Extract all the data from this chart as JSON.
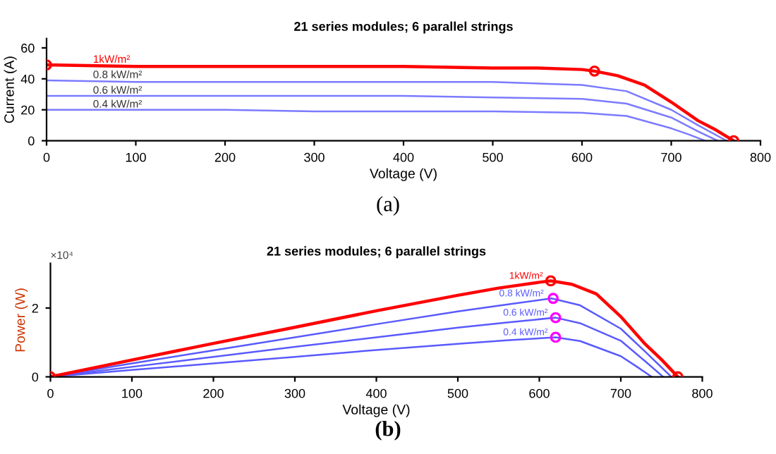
{
  "chart_data": [
    {
      "type": "line",
      "title": "21 series modules; 6 parallel strings",
      "xlabel": "Voltage (V)",
      "ylabel": "Current (A)",
      "xlim": [
        0,
        800
      ],
      "ylim": [
        0,
        66
      ],
      "xticks": [
        0,
        100,
        200,
        300,
        400,
        500,
        600,
        700,
        800
      ],
      "yticks": [
        0,
        20,
        40,
        60
      ],
      "grid": false,
      "legend": false,
      "annotations": [
        "(a)"
      ],
      "series": [
        {
          "name": "0.4 kW/m²",
          "color": "#7b7bff",
          "marker": "none",
          "x": [
            0,
            100,
            200,
            300,
            400,
            500,
            600,
            650,
            700,
            720,
            738
          ],
          "values": [
            20,
            20,
            20,
            19,
            19,
            19,
            18,
            16,
            8,
            4,
            0
          ]
        },
        {
          "name": "0.6 kW/m²",
          "color": "#7b7bff",
          "marker": "none",
          "x": [
            0,
            100,
            200,
            300,
            400,
            500,
            600,
            650,
            700,
            730,
            752
          ],
          "values": [
            29,
            29,
            29,
            29,
            29,
            28,
            27,
            24,
            15,
            6,
            0
          ]
        },
        {
          "name": "0.8 kW/m²",
          "color": "#7b7bff",
          "marker": "none",
          "x": [
            0,
            100,
            200,
            300,
            400,
            500,
            600,
            650,
            700,
            730,
            762
          ],
          "values": [
            39,
            38,
            38,
            38,
            38,
            38,
            36,
            32,
            20,
            10,
            0
          ]
        },
        {
          "name": "1kW/m²",
          "color": "#ff0000",
          "marker": "none",
          "x": [
            0,
            100,
            200,
            300,
            400,
            500,
            550,
            600,
            614,
            640,
            670,
            700,
            730,
            750,
            770
          ],
          "values": [
            49,
            48,
            48,
            48,
            48,
            47,
            47,
            46,
            45,
            42,
            36,
            25,
            13,
            7,
            0
          ]
        },
        {
          "type": "scatter",
          "color": "#ff0000",
          "marker": "circle",
          "x": [
            0,
            614,
            770
          ],
          "values": [
            49,
            45,
            0
          ]
        }
      ]
    },
    {
      "type": "line",
      "title": "21 series modules; 6 parallel strings",
      "xlabel": "Voltage (V)",
      "ylabel": "Power (W)",
      "xlim": [
        0,
        800
      ],
      "ylim": [
        0,
        3.3
      ],
      "xticks": [
        0,
        100,
        200,
        300,
        400,
        500,
        600,
        700,
        800
      ],
      "yticks": [
        0,
        2
      ],
      "grid": false,
      "legend": false,
      "annotations": [
        "×10⁴",
        "(b)"
      ],
      "series": [
        {
          "name": "0.4 kW/m²",
          "color": "#5a5aff",
          "marker": "none",
          "x": [
            0,
            100,
            200,
            300,
            400,
            500,
            560,
            620,
            650,
            700,
            720,
            738
          ],
          "values": [
            0,
            0.2,
            0.39,
            0.58,
            0.78,
            0.96,
            1.06,
            1.15,
            1.04,
            0.6,
            0.29,
            0
          ]
        },
        {
          "name": "0.6 kW/m²",
          "color": "#5a5aff",
          "marker": "none",
          "x": [
            0,
            100,
            200,
            300,
            400,
            500,
            560,
            620,
            650,
            700,
            730,
            752
          ],
          "values": [
            0,
            0.29,
            0.58,
            0.87,
            1.15,
            1.43,
            1.58,
            1.72,
            1.56,
            1.05,
            0.45,
            0
          ]
        },
        {
          "name": "0.8 kW/m²",
          "color": "#5a5aff",
          "marker": "none",
          "x": [
            0,
            100,
            200,
            300,
            400,
            500,
            560,
            615,
            650,
            700,
            730,
            762
          ],
          "values": [
            0,
            0.39,
            0.77,
            1.15,
            1.53,
            1.9,
            2.1,
            2.28,
            2.08,
            1.4,
            0.73,
            0
          ]
        },
        {
          "name": "1kW/m²",
          "color": "#ff0000",
          "marker": "none",
          "x": [
            0,
            100,
            200,
            300,
            400,
            500,
            550,
            600,
            614,
            640,
            670,
            700,
            730,
            750,
            770
          ],
          "values": [
            0,
            0.49,
            0.97,
            1.44,
            1.92,
            2.37,
            2.58,
            2.75,
            2.79,
            2.69,
            2.41,
            1.75,
            0.95,
            0.5,
            0
          ]
        },
        {
          "type": "scatter",
          "color": "#ff0000",
          "marker": "circle",
          "x": [
            0,
            614,
            770
          ],
          "values": [
            0,
            2.79,
            0
          ]
        },
        {
          "type": "scatter",
          "color": "#ff00ff",
          "marker": "circle",
          "x": [
            617,
            620,
            620
          ],
          "values": [
            2.28,
            1.72,
            1.15
          ]
        }
      ]
    }
  ]
}
